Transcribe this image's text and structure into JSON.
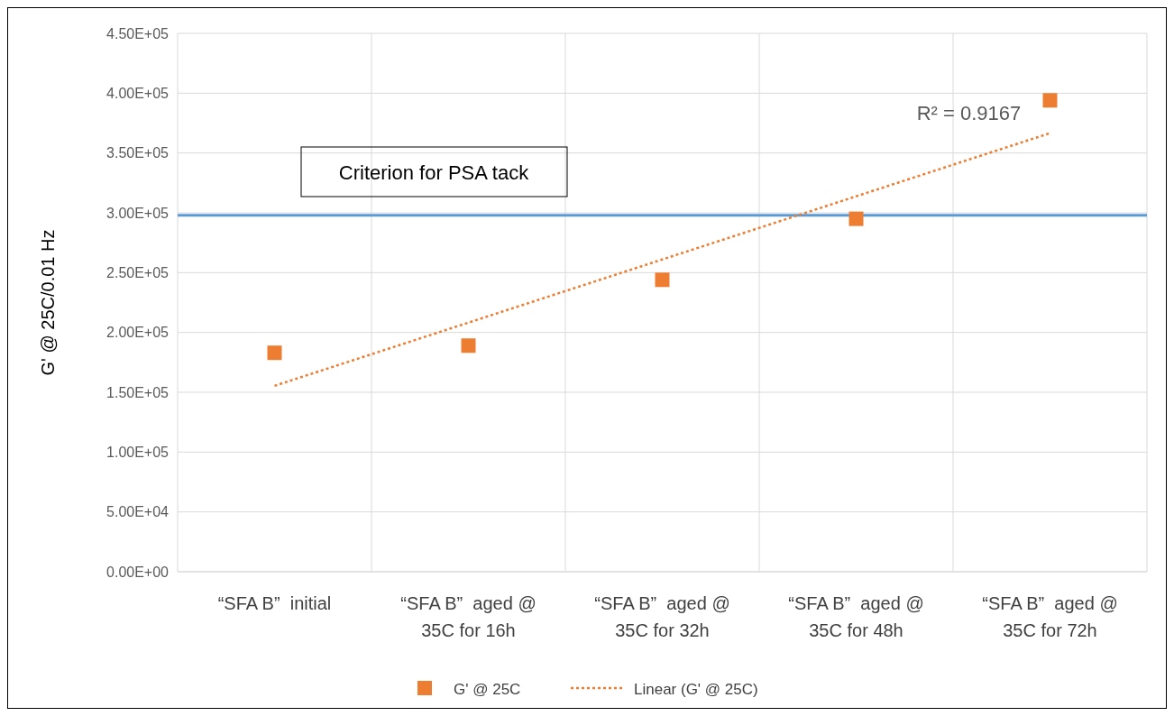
{
  "chart_data": {
    "type": "scatter",
    "ylabel": "G' @ 25C/0.01 Hz",
    "categories": [
      "“SFA B”  initial",
      "“SFA B”  aged @\n35C for 16h",
      "“SFA B”  aged @\n35C for 32h",
      "“SFA B”  aged @\n35C for 48h",
      "“SFA B”  aged @\n35C for 72h"
    ],
    "series": [
      {
        "name": "G' @ 25C",
        "type": "scatter",
        "color": "#ed7d31",
        "marker": "square",
        "values": [
          183000,
          189000,
          244000,
          295000,
          394000
        ]
      },
      {
        "name": "Linear (G' @ 25C)",
        "type": "line",
        "color": "#ed7d31",
        "line_style": "dotted",
        "marker": "none",
        "x": [
          "“SFA B”  initial",
          "“SFA B”  aged @\n35C for 72h"
        ],
        "values": [
          155400,
          366600
        ]
      }
    ],
    "ylim": [
      0,
      450000
    ],
    "yticks": [
      {
        "value": 0,
        "label": "0.00E+00"
      },
      {
        "value": 50000,
        "label": "5.00E+04"
      },
      {
        "value": 100000,
        "label": "1.00E+05"
      },
      {
        "value": 150000,
        "label": "1.50E+05"
      },
      {
        "value": 200000,
        "label": "2.00E+05"
      },
      {
        "value": 250000,
        "label": "2.50E+05"
      },
      {
        "value": 300000,
        "label": "3.00E+05"
      },
      {
        "value": 350000,
        "label": "3.50E+05"
      },
      {
        "value": 400000,
        "label": "4.00E+05"
      },
      {
        "value": 450000,
        "label": "4.50E+05"
      }
    ],
    "ref_lines": [
      {
        "axis": "y",
        "value": 298000,
        "label": "Criterion for PSA tack",
        "color": "#5b9bd5"
      }
    ],
    "annotations": [
      {
        "text": "R² = 0.9167",
        "x": "“SFA B”  aged @\n35C for 72h",
        "y": 366600
      }
    ],
    "grid": true,
    "legend": "bottom"
  }
}
